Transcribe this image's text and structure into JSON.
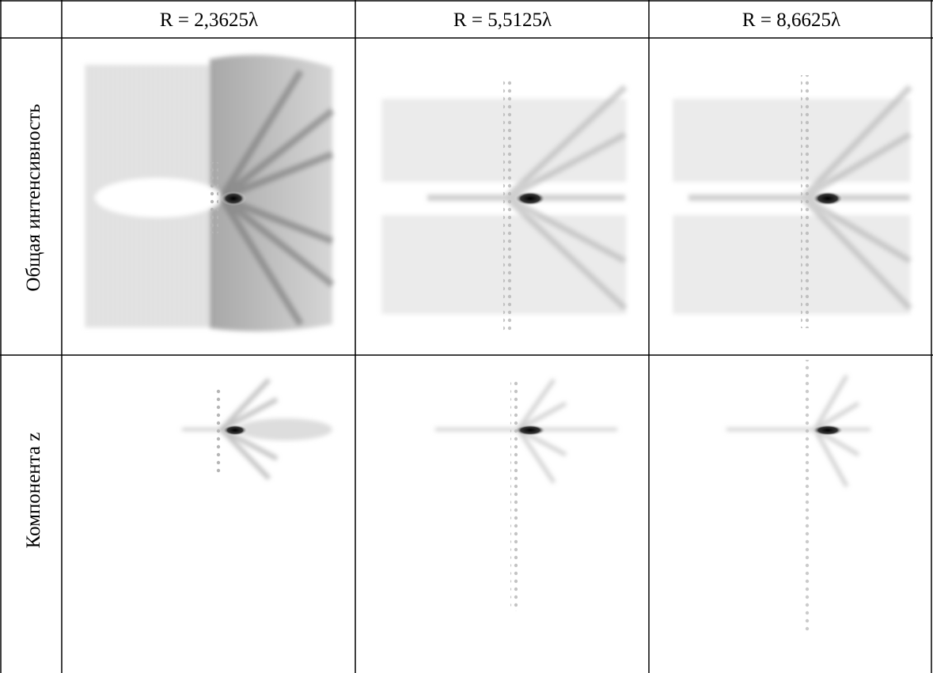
{
  "table": {
    "header": [
      "R = 2,3625λ",
      "R = 5,5125λ",
      "R = 8,6625λ"
    ],
    "rows": [
      {
        "label": "Общая интенсивность"
      },
      {
        "label": "Компонента z"
      }
    ]
  }
}
